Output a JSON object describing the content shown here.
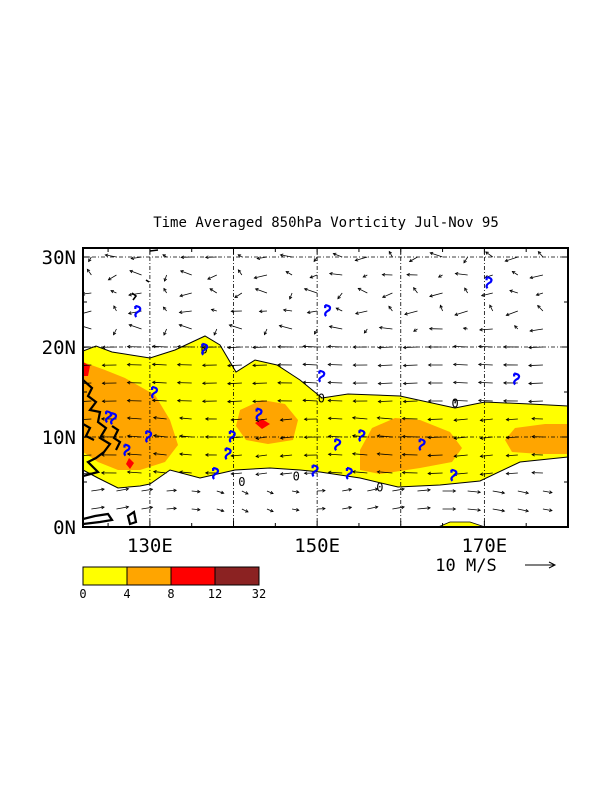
{
  "title": "Time Averaged 850hPa Vorticity  Jul-Nov  95",
  "map": {
    "lon_range": [
      122,
      180
    ],
    "lat_range": [
      0,
      31
    ],
    "lat_ticks": [
      {
        "value": 0,
        "label": "0N"
      },
      {
        "value": 10,
        "label": "10N"
      },
      {
        "value": 20,
        "label": "20N"
      },
      {
        "value": 30,
        "label": "30N"
      }
    ],
    "lon_ticks": [
      {
        "value": 130,
        "label": "130E"
      },
      {
        "value": 150,
        "label": "150E"
      },
      {
        "value": 170,
        "label": "170E"
      }
    ],
    "grid_lons": [
      130,
      140,
      150,
      160,
      170
    ],
    "grid_lats": [
      10,
      20,
      30
    ],
    "contour_zero_label": "0",
    "vector_reference": {
      "label": "10 M/S",
      "speed": 10
    }
  },
  "colorbar": {
    "colors": [
      "#ffff00",
      "#ffa500",
      "#ff0000",
      "#8b2222"
    ],
    "labels": [
      "0",
      "4",
      "8",
      "12",
      "32"
    ]
  },
  "cyclone_markers": [
    [
      128.5,
      24
    ],
    [
      136.5,
      19.8
    ],
    [
      130.5,
      15
    ],
    [
      125,
      12.3
    ],
    [
      125.6,
      12.1
    ],
    [
      127.2,
      8.6
    ],
    [
      129.8,
      10.1
    ],
    [
      139.8,
      10.1
    ],
    [
      139.3,
      8.2
    ],
    [
      137.8,
      6
    ],
    [
      143,
      12.6
    ],
    [
      150.5,
      16.8
    ],
    [
      151.2,
      24.1
    ],
    [
      155.3,
      10.2
    ],
    [
      152.4,
      9.2
    ],
    [
      149.7,
      6.3
    ],
    [
      153.8,
      6
    ],
    [
      162.5,
      9.2
    ],
    [
      166.3,
      5.8
    ],
    [
      170.5,
      27.2
    ],
    [
      173.8,
      16.5
    ]
  ],
  "labels_visible": {
    "zero_contour_marks": [
      "0",
      "0",
      "0",
      "0",
      "0",
      "0"
    ]
  }
}
